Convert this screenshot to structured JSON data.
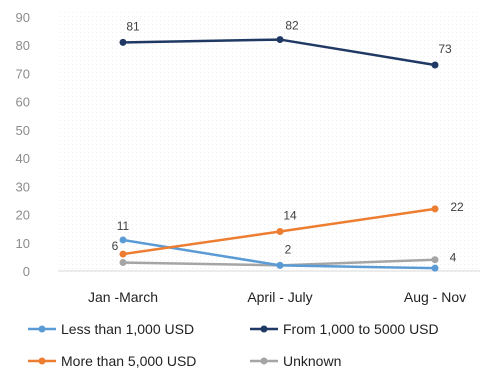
{
  "chart_data": {
    "type": "line",
    "categories": [
      "Jan -March",
      "April - July",
      "Aug - Nov"
    ],
    "ylim": [
      0,
      90
    ],
    "yticks": [
      0,
      10,
      20,
      30,
      40,
      50,
      60,
      70,
      80,
      90
    ],
    "grid": false,
    "legend_position": "bottom",
    "series": [
      {
        "name": "Less than 1,000 USD",
        "color": "#5b9bd5",
        "values": [
          11,
          2,
          1
        ],
        "labels": [
          "11",
          "2",
          ""
        ]
      },
      {
        "name": "From 1,000 to 5000 USD",
        "color": "#1f3864",
        "values": [
          81,
          82,
          73
        ],
        "labels": [
          "81",
          "82",
          "73"
        ]
      },
      {
        "name": "More than 5,000 USD",
        "color": "#ed7d31",
        "values": [
          6,
          14,
          22
        ],
        "labels": [
          "6",
          "14",
          "22"
        ]
      },
      {
        "name": "Unknown",
        "color": "#a5a5a5",
        "values": [
          3,
          2,
          4
        ],
        "labels": [
          "",
          "",
          "4"
        ]
      }
    ]
  }
}
